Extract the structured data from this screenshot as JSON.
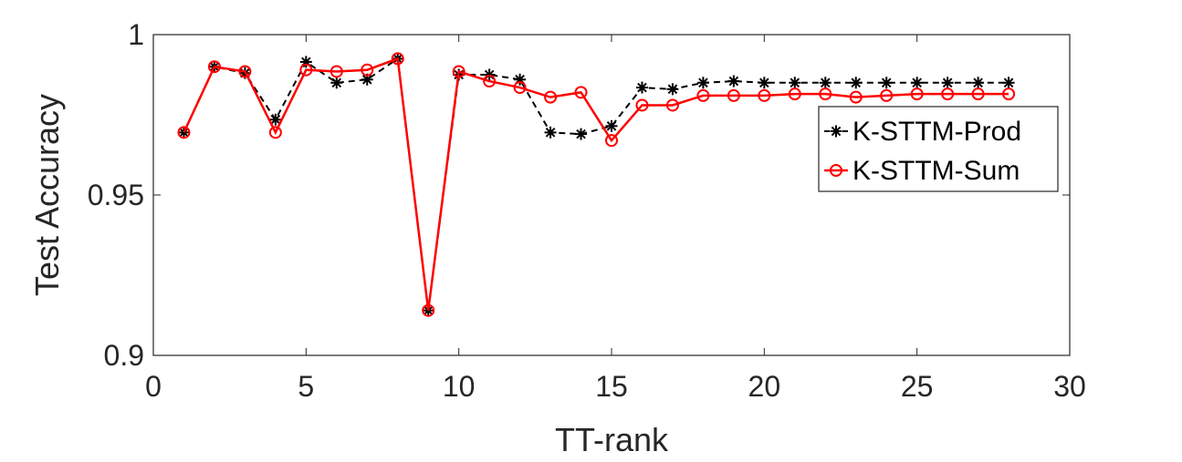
{
  "chart_data": {
    "type": "line",
    "title": "",
    "xlabel": "TT-rank",
    "ylabel": "Test Accuracy",
    "xlim": [
      0,
      30
    ],
    "ylim": [
      0.9,
      1.0
    ],
    "xticks": [
      0,
      5,
      10,
      15,
      20,
      25,
      30
    ],
    "xtick_labels": [
      "0",
      "5",
      "10",
      "15",
      "20",
      "25",
      "30"
    ],
    "yticks": [
      0.9,
      0.95,
      1.0
    ],
    "ytick_labels": [
      "0.9",
      "0.95",
      "1"
    ],
    "grid": false,
    "legend_position": "right",
    "x": [
      1,
      2,
      3,
      4,
      5,
      6,
      7,
      8,
      9,
      10,
      11,
      12,
      13,
      14,
      15,
      16,
      17,
      18,
      19,
      20,
      21,
      22,
      23,
      24,
      25,
      26,
      27,
      28
    ],
    "series": [
      {
        "name": "K-STTM-Prod",
        "color": "#000000",
        "line_style": "dashed",
        "marker": "asterisk",
        "values": [
          0.9695,
          0.99,
          0.988,
          0.9735,
          0.9915,
          0.985,
          0.986,
          0.9925,
          0.914,
          0.9875,
          0.9875,
          0.986,
          0.9695,
          0.969,
          0.9715,
          0.9835,
          0.983,
          0.985,
          0.9855,
          0.985,
          0.985,
          0.985,
          0.985,
          0.985,
          0.985,
          0.985,
          0.985,
          0.985
        ]
      },
      {
        "name": "K-STTM-Sum",
        "color": "#ff0000",
        "line_style": "solid",
        "marker": "circle",
        "values": [
          0.9695,
          0.99,
          0.9885,
          0.9695,
          0.989,
          0.9885,
          0.989,
          0.9925,
          0.914,
          0.9885,
          0.9855,
          0.9835,
          0.9805,
          0.982,
          0.967,
          0.978,
          0.978,
          0.981,
          0.981,
          0.981,
          0.9815,
          0.9815,
          0.9805,
          0.981,
          0.9815,
          0.9815,
          0.9815,
          0.9815
        ]
      }
    ]
  }
}
